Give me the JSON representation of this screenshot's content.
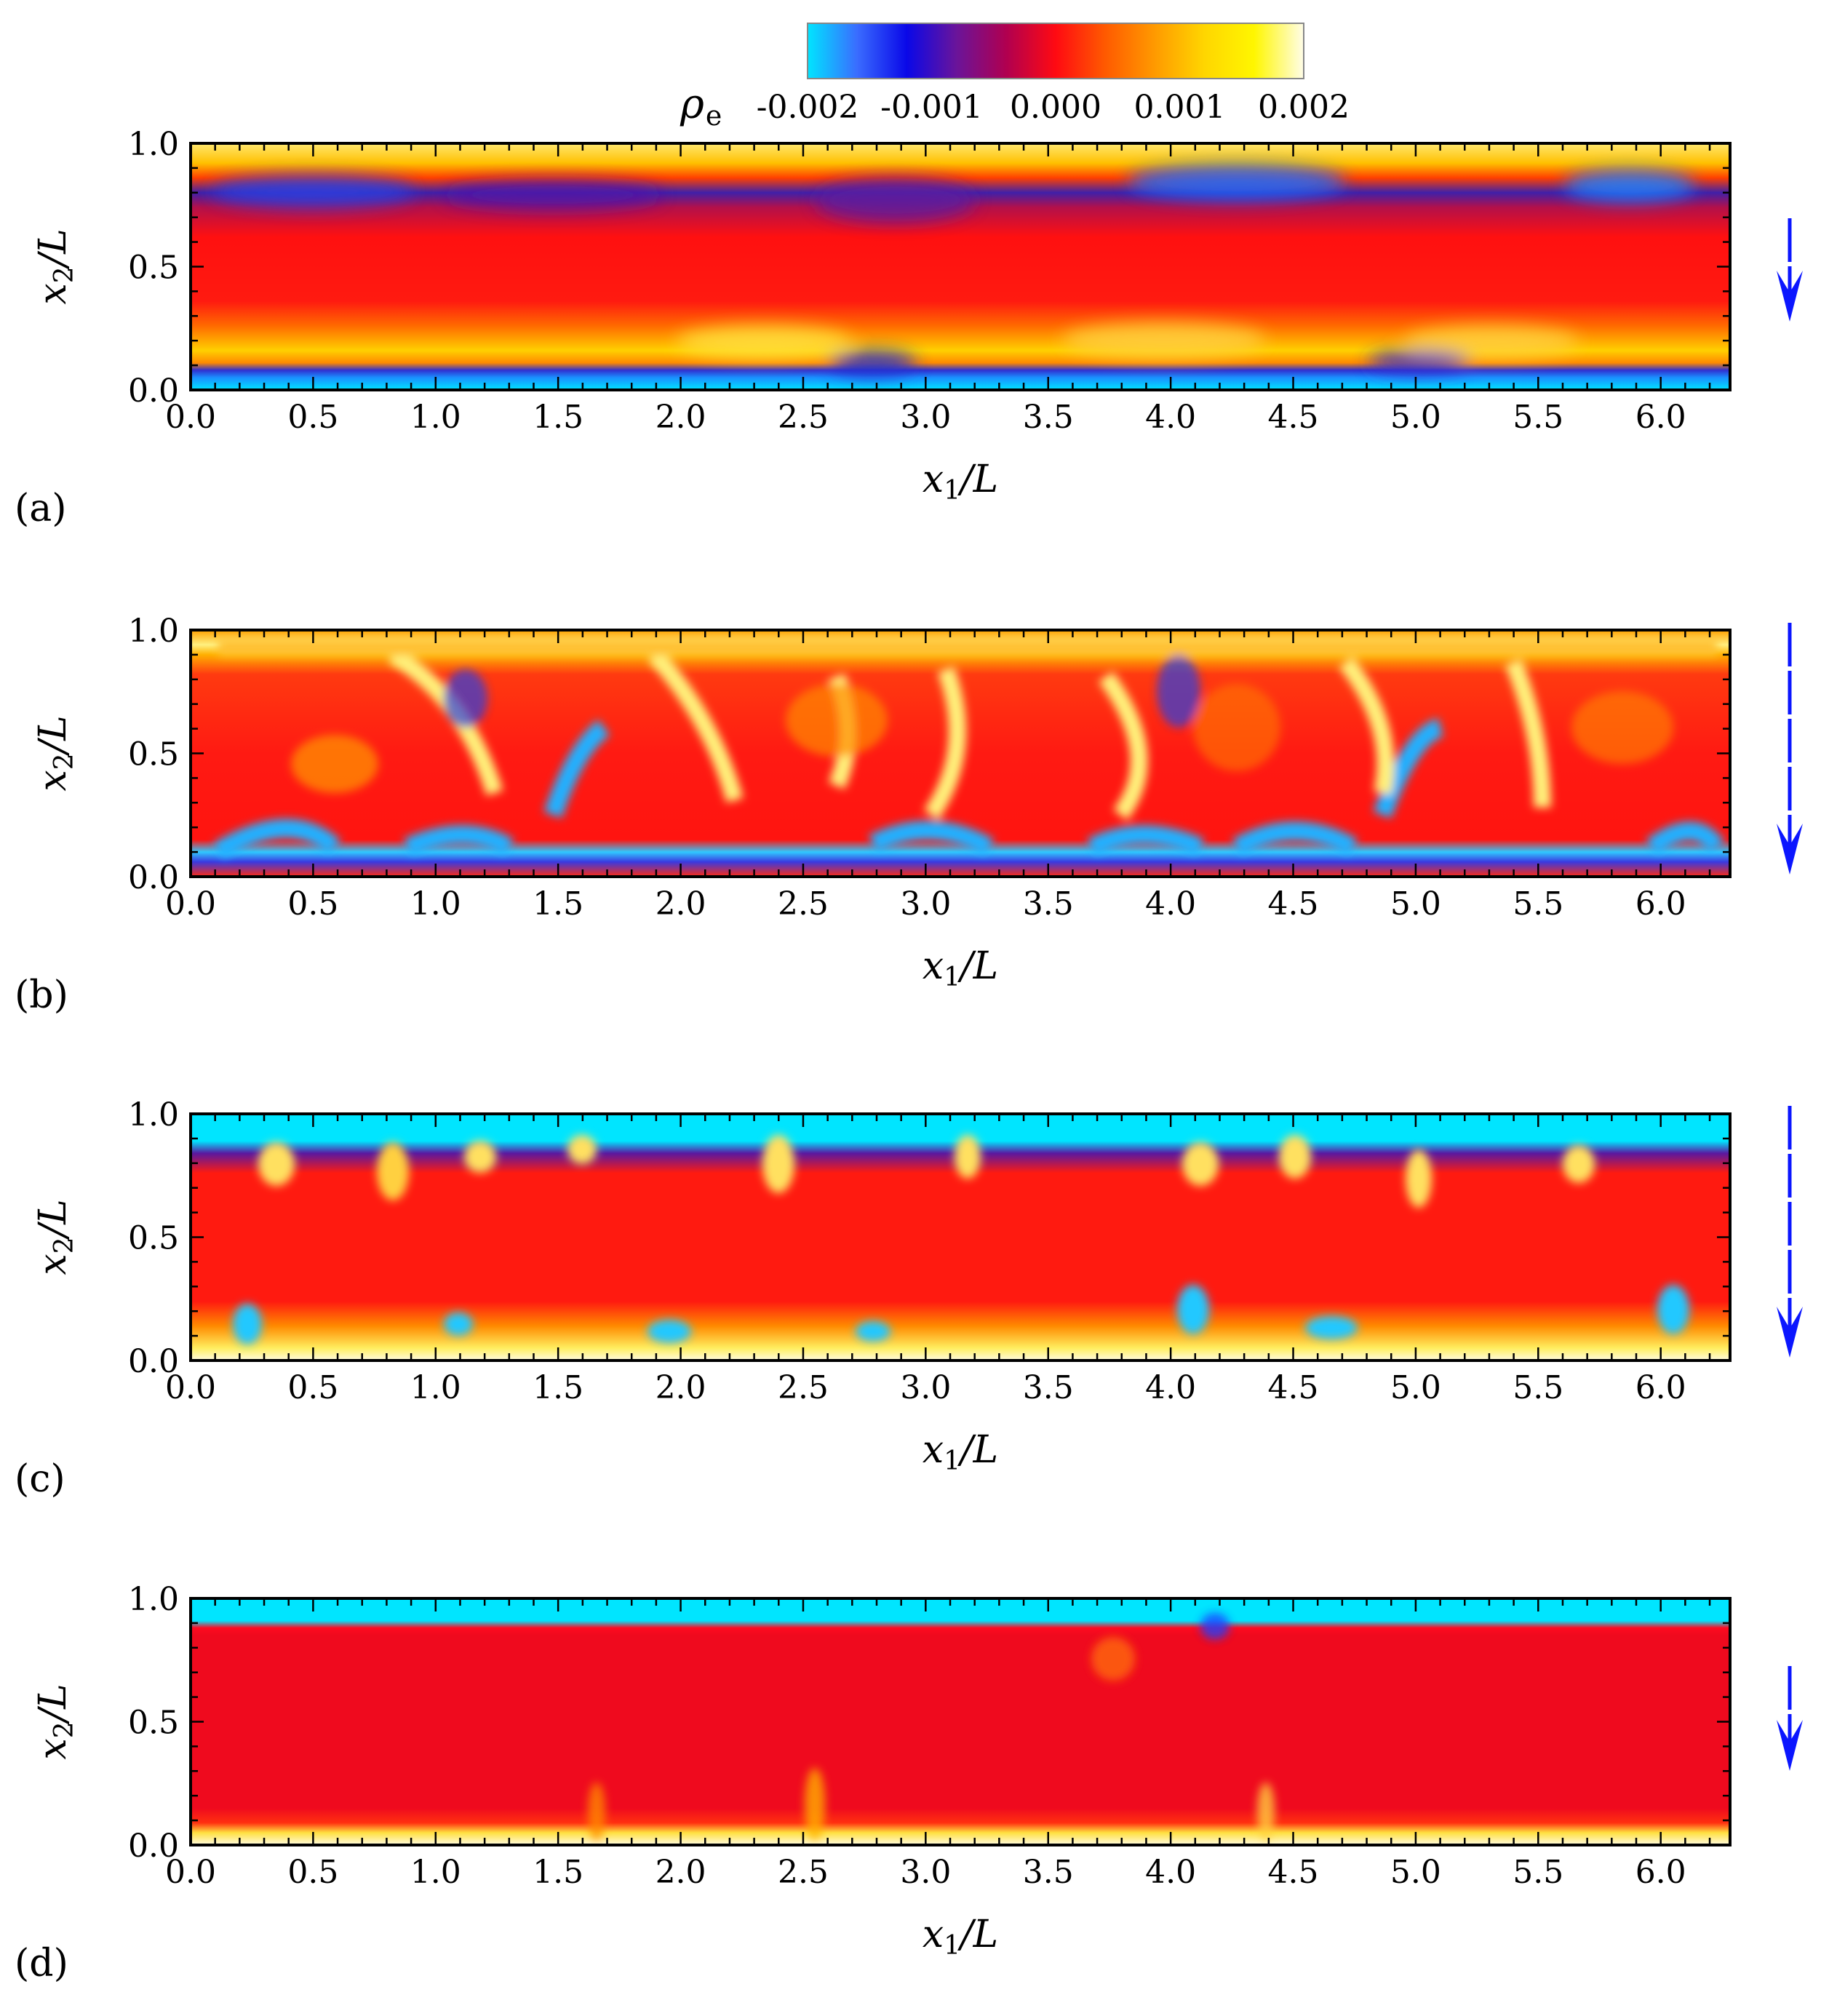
{
  "colorbar": {
    "symbol": "ρ",
    "subscript": "e",
    "ticks": [
      "-0.002",
      "-0.001",
      "0.000",
      "0.001",
      "0.002"
    ],
    "range": [
      -0.002,
      0.002
    ],
    "colors": [
      "#00e5ff",
      "#3a6cff",
      "#0a08e8",
      "#6a149a",
      "#b00050",
      "#ff0a12",
      "#ff5a00",
      "#ff9a00",
      "#ffd600",
      "#fff600",
      "#fffde8"
    ]
  },
  "axes": {
    "xlabel_var": "x",
    "xlabel_sub": "1",
    "xlabel_den": "/L",
    "ylabel_var": "x",
    "ylabel_sub": "2",
    "ylabel_den": "/L",
    "xticks": [
      "0.0",
      "0.5",
      "1.0",
      "1.5",
      "2.0",
      "2.5",
      "3.0",
      "3.5",
      "4.0",
      "4.5",
      "5.0",
      "5.5",
      "6.0"
    ],
    "yticks": [
      "0.0",
      "0.5",
      "1.0"
    ],
    "xlim": [
      0,
      6.283
    ],
    "ylim": [
      0,
      1
    ]
  },
  "arrow_color": "#0b16ff",
  "panels": [
    {
      "label": "(a)"
    },
    {
      "label": "(b)"
    },
    {
      "label": "(c)"
    },
    {
      "label": "(d)"
    }
  ],
  "chart_data": {
    "type": "heatmap",
    "quantity_symbol": "ρe",
    "x_range": [
      0,
      6.283
    ],
    "y_range": [
      0,
      1
    ],
    "color_range": [
      -0.002,
      0.002
    ],
    "panels": [
      "(a)",
      "(b)",
      "(c)",
      "(d)"
    ]
  }
}
